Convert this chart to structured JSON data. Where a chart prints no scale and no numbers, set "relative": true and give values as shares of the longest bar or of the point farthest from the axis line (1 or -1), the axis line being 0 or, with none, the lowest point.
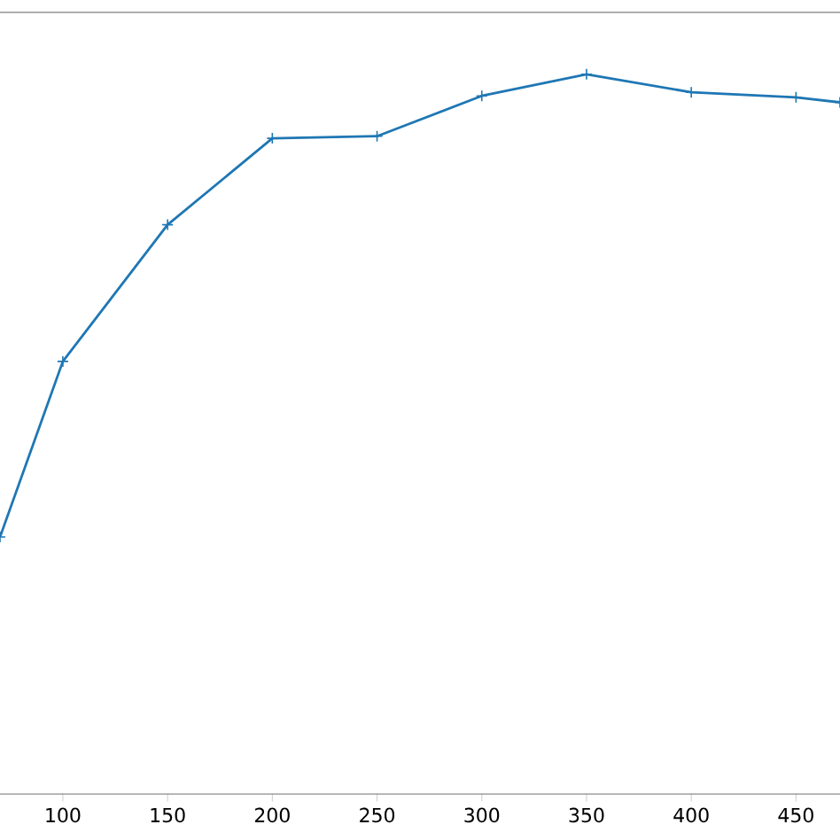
{
  "chart_data": {
    "type": "line",
    "relative": true,
    "x": [
      70,
      100,
      150,
      200,
      250,
      300,
      350,
      400,
      450,
      471
    ],
    "series": [
      {
        "color": "#1f77b4",
        "values": [
          0.357,
          0.601,
          0.791,
          0.911,
          0.914,
          0.97,
          1,
          0.975,
          0.968,
          0.961
        ]
      }
    ],
    "xlim": [
      70,
      471
    ],
    "xticks": [
      100,
      150,
      200,
      250,
      300,
      350,
      400,
      450
    ],
    "marker": "cross",
    "grid": false
  }
}
